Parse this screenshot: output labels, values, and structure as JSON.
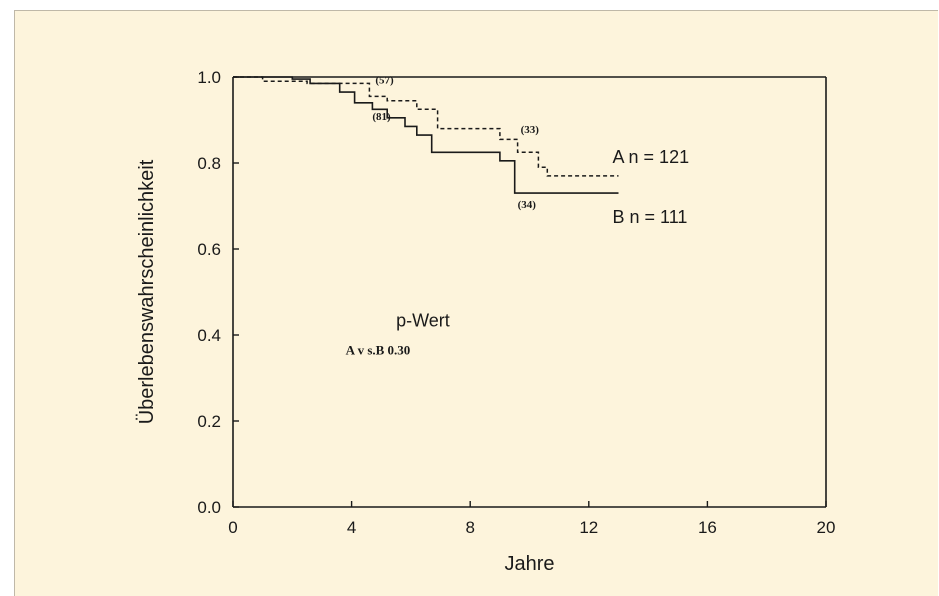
{
  "chart_data": {
    "type": "line",
    "title": "",
    "xlabel": "Jahre",
    "ylabel": "Überlebenswahrscheinlichkeit",
    "xlim": [
      0,
      20
    ],
    "ylim": [
      0.0,
      1.0
    ],
    "x_ticks": [
      "0",
      "4",
      "8",
      "12",
      "16",
      "20"
    ],
    "y_ticks": [
      "0.0",
      "0.2",
      "0.4",
      "0.6",
      "0.8",
      "1.0"
    ],
    "grid": false,
    "series": [
      {
        "name": "A",
        "style": "dashed",
        "points": [
          [
            0,
            1.0
          ],
          [
            1.0,
            1.0
          ],
          [
            1.0,
            0.99
          ],
          [
            2.5,
            0.99
          ],
          [
            2.5,
            0.985
          ],
          [
            4.6,
            0.985
          ],
          [
            4.6,
            0.955
          ],
          [
            5.2,
            0.955
          ],
          [
            5.2,
            0.945
          ],
          [
            6.2,
            0.945
          ],
          [
            6.2,
            0.925
          ],
          [
            6.9,
            0.925
          ],
          [
            6.9,
            0.88
          ],
          [
            9.0,
            0.88
          ],
          [
            9.0,
            0.855
          ],
          [
            9.6,
            0.855
          ],
          [
            9.6,
            0.825
          ],
          [
            10.3,
            0.825
          ],
          [
            10.3,
            0.79
          ],
          [
            10.6,
            0.79
          ],
          [
            10.6,
            0.77
          ],
          [
            13.0,
            0.77
          ]
        ]
      },
      {
        "name": "B",
        "style": "solid",
        "points": [
          [
            0,
            1.0
          ],
          [
            2.0,
            1.0
          ],
          [
            2.0,
            0.995
          ],
          [
            2.6,
            0.995
          ],
          [
            2.6,
            0.985
          ],
          [
            3.6,
            0.985
          ],
          [
            3.6,
            0.965
          ],
          [
            4.1,
            0.965
          ],
          [
            4.1,
            0.94
          ],
          [
            4.7,
            0.94
          ],
          [
            4.7,
            0.925
          ],
          [
            5.2,
            0.925
          ],
          [
            5.2,
            0.905
          ],
          [
            5.8,
            0.905
          ],
          [
            5.8,
            0.885
          ],
          [
            6.2,
            0.885
          ],
          [
            6.2,
            0.865
          ],
          [
            6.7,
            0.865
          ],
          [
            6.7,
            0.825
          ],
          [
            9.0,
            0.825
          ],
          [
            9.0,
            0.805
          ],
          [
            9.5,
            0.805
          ],
          [
            9.5,
            0.73
          ],
          [
            13.0,
            0.73
          ]
        ]
      }
    ],
    "annotations": [
      {
        "text": "(57)",
        "x": 4.8,
        "y": 0.985
      },
      {
        "text": "(33)",
        "x": 9.7,
        "y": 0.87
      },
      {
        "text": "(81)",
        "x": 4.7,
        "y": 0.9
      },
      {
        "text": "(34)",
        "x": 9.6,
        "y": 0.695
      },
      {
        "text": "A  n = 121",
        "x": 12.8,
        "y": 0.8
      },
      {
        "text": "B  n = 111",
        "x": 12.8,
        "y": 0.66
      },
      {
        "text": "p-Wert",
        "x": 5.5,
        "y": 0.42
      },
      {
        "text": "A v s.B  0.30",
        "x": 3.8,
        "y": 0.355
      }
    ],
    "frame_top_edge_y": 1.0
  }
}
